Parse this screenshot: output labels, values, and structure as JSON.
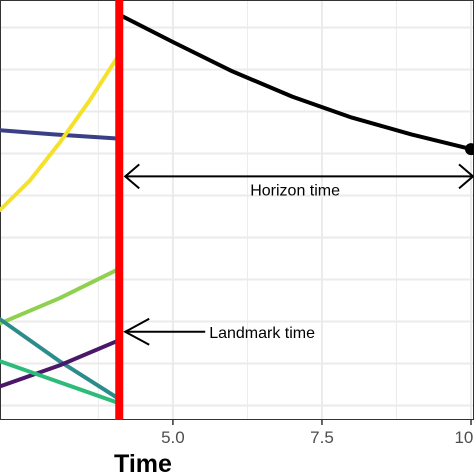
{
  "chart_data": {
    "type": "line",
    "xlabel": "Time",
    "ylabel": "",
    "xlim": [
      2.1,
      10.05
    ],
    "ylim": [
      0,
      1
    ],
    "x_ticks": [
      5.0,
      7.5,
      10.0
    ],
    "x_tick_labels": [
      "5.0",
      "7.5",
      "10.0"
    ],
    "y_gridlines": [
      0.0345,
      0.1345,
      0.2345,
      0.3345,
      0.4345,
      0.5345,
      0.6345,
      0.7345,
      0.8345,
      0.9345
    ],
    "grid": true,
    "landmark_time": 4.1,
    "horizon_time": 10.0,
    "series": [
      {
        "color": "#3b3f86",
        "x": [
          2.1,
          3.0,
          4.1
        ],
        "y": [
          0.69,
          0.68,
          0.67
        ]
      },
      {
        "color": "#f5e12a",
        "x": [
          2.1,
          2.6,
          3.1,
          3.6,
          4.1
        ],
        "y": [
          0.5,
          0.57,
          0.66,
          0.76,
          0.87
        ]
      },
      {
        "color": "#8fd14f",
        "x": [
          2.1,
          3.1,
          4.1
        ],
        "y": [
          0.23,
          0.29,
          0.36
        ]
      },
      {
        "color": "#2c8c8c",
        "x": [
          2.1,
          3.1,
          4.1
        ],
        "y": [
          0.24,
          0.14,
          0.05
        ]
      },
      {
        "color": "#4b1769",
        "x": [
          2.1,
          3.1,
          4.1
        ],
        "y": [
          0.08,
          0.13,
          0.19
        ]
      },
      {
        "color": "#2dbb79",
        "x": [
          2.1,
          3.1,
          4.1
        ],
        "y": [
          0.14,
          0.09,
          0.04
        ]
      },
      {
        "color": "#000000",
        "x": [
          4.1,
          5.0,
          6.0,
          7.0,
          8.0,
          9.0,
          10.0
        ],
        "y": [
          0.965,
          0.9,
          0.83,
          0.77,
          0.72,
          0.68,
          0.645
        ]
      }
    ],
    "annotations": [
      {
        "text": "Horizon time",
        "type": "double-arrow",
        "x_start": 4.1,
        "x_end": 10.0,
        "y": 0.58
      },
      {
        "text": "Landmark time",
        "type": "arrow",
        "x_tip": 4.2,
        "y": 0.21
      }
    ]
  },
  "colors": {
    "landmark_line": "#ff0000",
    "grid": "#ebebeb",
    "background": "#ffffff"
  }
}
